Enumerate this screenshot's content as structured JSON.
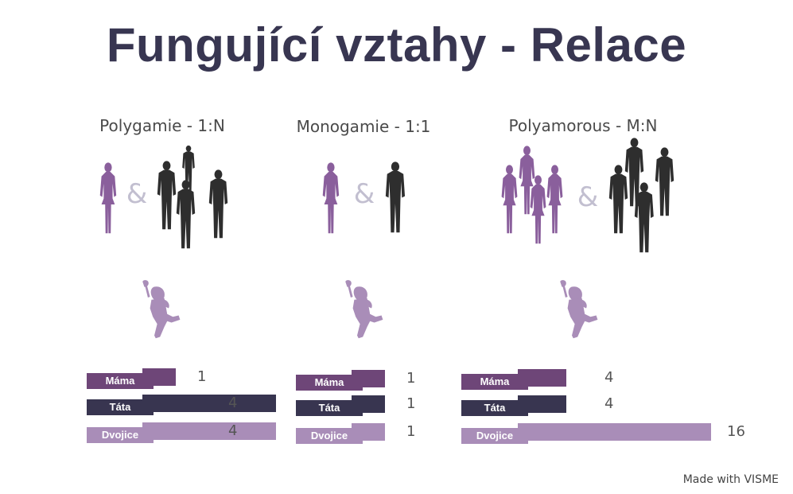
{
  "title": "Fungující vztahy - Relace",
  "footer": "Made with VISME",
  "colors": {
    "title": "#383651",
    "female": "#8a5f9c",
    "male": "#2e2e2e",
    "child": "#a98db8",
    "mama": "#6e4678",
    "tata": "#383550",
    "dvojice": "#a98db8",
    "ampersand": "#c2bfd0"
  },
  "panels": [
    {
      "title": "Polygamie - 1:N",
      "ampersand": "&",
      "icons": [
        "female-silhouette-icon",
        "male-silhouette-icon",
        "child-silhouette-icon"
      ],
      "females": 1,
      "males": 4,
      "bars": [
        {
          "label": "Máma",
          "value": 1
        },
        {
          "label": "Táta",
          "value": 4
        },
        {
          "label": "Dvojice",
          "value": 4
        }
      ]
    },
    {
      "title": "Monogamie - 1:1",
      "ampersand": "&",
      "icons": [
        "female-silhouette-icon",
        "male-silhouette-icon",
        "child-silhouette-icon"
      ],
      "females": 1,
      "males": 1,
      "bars": [
        {
          "label": "Máma",
          "value": 1
        },
        {
          "label": "Táta",
          "value": 1
        },
        {
          "label": "Dvojice",
          "value": 1
        }
      ]
    },
    {
      "title": "Polyamorous - M:N",
      "ampersand": "&",
      "icons": [
        "female-silhouette-icon",
        "male-silhouette-icon",
        "child-silhouette-icon"
      ],
      "females": 4,
      "males": 4,
      "bars": [
        {
          "label": "Máma",
          "value": 4
        },
        {
          "label": "Táta",
          "value": 4
        },
        {
          "label": "Dvojice",
          "value": 16
        }
      ]
    }
  ]
}
